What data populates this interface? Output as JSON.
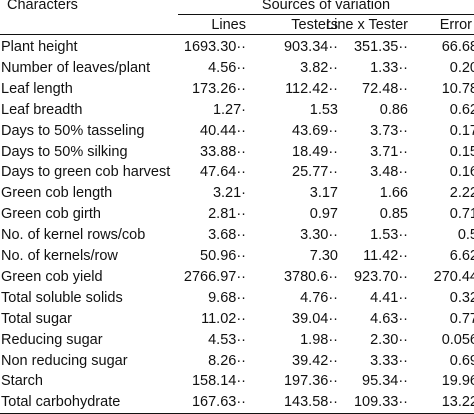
{
  "header": {
    "characters": "Characters",
    "sources": "Sources of variation",
    "columns": {
      "lines": "Lines",
      "testers": "Testers",
      "line_x_tester": "Line x Tester",
      "error": "Error"
    }
  },
  "rows": [
    {
      "name": "Plant height",
      "lines": "1693.30··",
      "testers": "903.34··",
      "lxt": "351.35··",
      "error": "66.68"
    },
    {
      "name": "Number of leaves/plant",
      "lines": "4.56··",
      "testers": "3.82··",
      "lxt": "1.33··",
      "error": "0.20"
    },
    {
      "name": "Leaf length",
      "lines": "173.26··",
      "testers": "112.42··",
      "lxt": "72.48··",
      "error": "10.78"
    },
    {
      "name": "Leaf breadth",
      "lines": "1.27·",
      "testers": "1.53",
      "lxt": "0.86",
      "error": "0.62"
    },
    {
      "name": "Days to 50% tasseling",
      "lines": "40.44··",
      "testers": "43.69··",
      "lxt": "3.73··",
      "error": "0.17"
    },
    {
      "name": "Days to 50% silking",
      "lines": "33.88··",
      "testers": "18.49··",
      "lxt": "3.71··",
      "error": "0.15"
    },
    {
      "name": "Days to green cob harvest",
      "lines": "47.64··",
      "testers": "25.77··",
      "lxt": "3.48··",
      "error": "0.16"
    },
    {
      "name": "Green cob length",
      "lines": "3.21·",
      "testers": "3.17",
      "lxt": "1.66",
      "error": "2.22"
    },
    {
      "name": "Green cob girth",
      "lines": "2.81··",
      "testers": "0.97",
      "lxt": "0.85",
      "error": "0.71"
    },
    {
      "name": "No. of kernel rows/cob",
      "lines": "3.68··",
      "testers": "3.30··",
      "lxt": "1.53··",
      "error": "0.5"
    },
    {
      "name": "No. of kernels/row",
      "lines": "50.96··",
      "testers": "7.30",
      "lxt": "11.42··",
      "error": "6.62"
    },
    {
      "name": "Green cob yield",
      "lines": "2766.97··",
      "testers": "3780.6··",
      "lxt": "923.70··",
      "error": "270.44"
    },
    {
      "name": "Total soluble solids",
      "lines": "9.68··",
      "testers": "4.76··",
      "lxt": "4.41··",
      "error": "0.32"
    },
    {
      "name": "Total sugar",
      "lines": "11.02··",
      "testers": "39.04··",
      "lxt": "4.63··",
      "error": "0.77"
    },
    {
      "name": "Reducing sugar",
      "lines": "4.53··",
      "testers": "1.98··",
      "lxt": "2.30··",
      "error": "0.056"
    },
    {
      "name": "Non reducing sugar",
      "lines": "8.26··",
      "testers": "39.42··",
      "lxt": "3.33··",
      "error": "0.69"
    },
    {
      "name": "Starch",
      "lines": "158.14··",
      "testers": "197.36··",
      "lxt": "95.34··",
      "error": "19.96"
    },
    {
      "name": "Total carbohydrate",
      "lines": "167.63··",
      "testers": "143.58··",
      "lxt": "109.33··",
      "error": "13.22"
    }
  ]
}
